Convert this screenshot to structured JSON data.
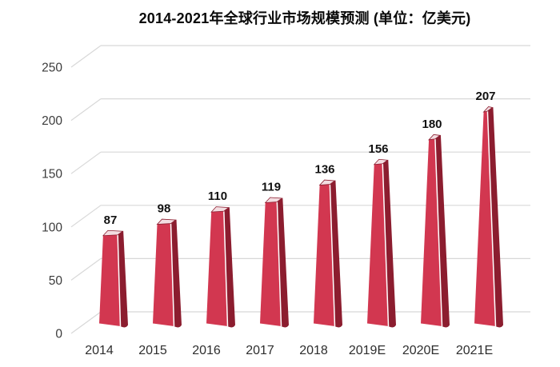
{
  "title": "2014-2021年全球行业市场规模预测 (单位：亿美元)",
  "chart_data": {
    "type": "bar",
    "style": "3d-cone",
    "title": "2014-2021年全球行业市场规模预测 (单位：亿美元)",
    "unit": "亿美元",
    "categories": [
      "2014",
      "2015",
      "2016",
      "2017",
      "2018",
      "2019E",
      "2020E",
      "2021E"
    ],
    "values": [
      87,
      98,
      110,
      119,
      136,
      156,
      180,
      207
    ],
    "xlabel": "",
    "ylabel": "",
    "yticks": [
      0,
      50,
      100,
      150,
      200,
      250
    ],
    "ylim": [
      0,
      250
    ],
    "grid": true,
    "legend": "none",
    "colors": {
      "bar_front": "#d23750",
      "bar_side": "#8c1d2f",
      "bar_top": "#f3dde1",
      "grid": "#d8d8d8",
      "axis_text": "#3c3c3c",
      "data_label": "#111111",
      "title_text": "#0a0a0a",
      "background": "#ffffff"
    }
  }
}
